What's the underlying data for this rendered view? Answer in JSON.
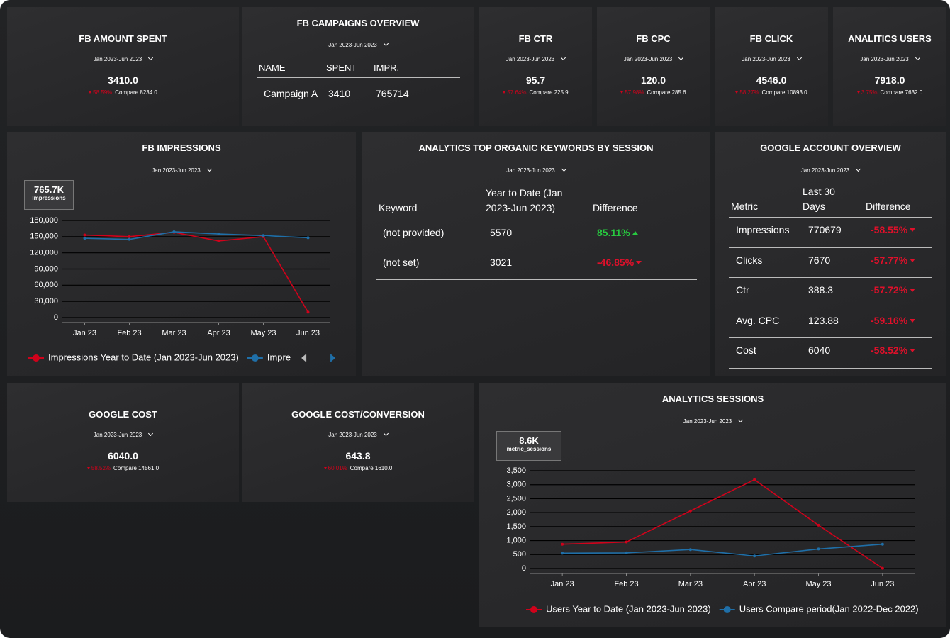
{
  "kpis": [
    {
      "title": "FB AMOUNT SPENT",
      "date_range": "Jan 2023-Jun 2023",
      "value": "3410.0",
      "change": "58.59%",
      "compare": "Compare 8234.0"
    },
    {
      "title": "FB CTR",
      "date_range": "Jan 2023-Jun 2023",
      "value": "95.7",
      "change": "57.64%",
      "compare": "Compare 225.9"
    },
    {
      "title": "FB CPC",
      "date_range": "Jan 2023-Jun 2023",
      "value": "120.0",
      "change": "57.98%",
      "compare": "Compare 285.6"
    },
    {
      "title": "FB CLICK",
      "date_range": "Jan 2023-Jun 2023",
      "value": "4546.0",
      "change": "58.27%",
      "compare": "Compare 10893.0"
    },
    {
      "title": "ANALITICS USERS",
      "date_range": "Jan 2023-Jun 2023",
      "value": "7918.0",
      "change": "3.75%",
      "compare": "Compare 7632.0"
    },
    {
      "title": "GOOGLE COST",
      "date_range": "Jan 2023-Jun 2023",
      "value": "6040.0",
      "change": "58.52%",
      "compare": "Compare 14561.0"
    },
    {
      "title": "GOOGLE COST/CONVERSION",
      "date_range": "Jan 2023-Jun 2023",
      "value": "643.8",
      "change": "60.01%",
      "compare": "Compare 1610.0"
    }
  ],
  "campaigns": {
    "title": "FB CAMPAIGNS OVERVIEW",
    "date_range": "Jan 2023-Jun 2023",
    "headers": [
      "NAME",
      "SPENT",
      "IMPR."
    ],
    "rows": [
      [
        "Campaign A",
        "3410",
        "765714"
      ]
    ]
  },
  "keywords": {
    "title": "ANALYTICS TOP ORGANIC KEYWORDS BY SESSION",
    "date_range": "Jan 2023-Jun 2023",
    "headers": [
      "Keyword",
      "Year to Date (Jan 2023-Jun 2023)",
      "Difference"
    ],
    "rows": [
      [
        "(not provided)",
        "5570",
        "85.11%"
      ],
      [
        "(not set)",
        "3021",
        "-46.85%"
      ]
    ]
  },
  "google_overview": {
    "title": "GOOGLE ACCOUNT OVERVIEW",
    "date_range": "Jan 2023-Jun 2023",
    "headers": [
      "Metric",
      "Last 30 Days",
      "Difference"
    ],
    "rows": [
      [
        "Impressions",
        "770679",
        "-58.55%"
      ],
      [
        "Clicks",
        "7670",
        "-57.77%"
      ],
      [
        "Ctr",
        "388.3",
        "-57.72%"
      ],
      [
        "Avg. CPC",
        "123.88",
        "-59.16%"
      ],
      [
        "Cost",
        "6040",
        "-58.52%"
      ]
    ]
  },
  "chart_data": [
    {
      "type": "line",
      "title": "FB IMPRESSIONS",
      "date_range": "Jan 2023-Jun 2023",
      "scorecard": {
        "value": "765.7K",
        "label": "Impressions"
      },
      "categories": [
        "Jan 23",
        "Feb 23",
        "Mar 23",
        "Apr 23",
        "May 23",
        "Jun 23"
      ],
      "ylim": [
        0,
        180000
      ],
      "yticks": [
        0,
        {
          "value": 30000,
          "label": "30,000"
        },
        {
          "value": 60000,
          "label": "60,000"
        },
        {
          "value": 90000,
          "label": "90,000"
        },
        {
          "value": 120000,
          "label": "120,000"
        },
        {
          "value": 150000,
          "label": "150,000"
        },
        {
          "value": 180000,
          "label": "180,000"
        }
      ],
      "grid": true,
      "series": [
        {
          "name": "Impressions Year to Date (Jan 2023-Jun 2023)",
          "color": "#d0021b",
          "values": [
            153000,
            150000,
            158000,
            142000,
            150000,
            10000
          ]
        },
        {
          "name": "Impre",
          "color": "#1f6fa8",
          "values": [
            147000,
            145000,
            159000,
            155000,
            152000,
            148000
          ]
        }
      ]
    },
    {
      "type": "line",
      "title": "ANALYTICS SESSIONS",
      "date_range": "Jan 2023-Jun 2023",
      "scorecard": {
        "value": "8.6K",
        "label": "metric_sessions"
      },
      "categories": [
        "Jan 23",
        "Feb 23",
        "Mar 23",
        "Apr 23",
        "May 23",
        "Jun 23"
      ],
      "ylim": [
        0,
        3500
      ],
      "yticks": [
        0,
        500,
        {
          "value": 1000,
          "label": "1,000"
        },
        {
          "value": 1500,
          "label": "1,500"
        },
        {
          "value": 2000,
          "label": "2,000"
        },
        {
          "value": 2500,
          "label": "2,500"
        },
        {
          "value": 3000,
          "label": "3,000"
        },
        {
          "value": 3500,
          "label": "3,500"
        }
      ],
      "grid": true,
      "series": [
        {
          "name": "Users Year to Date (Jan 2023-Jun 2023)",
          "color": "#d0021b",
          "values": [
            870,
            950,
            2060,
            3180,
            1550,
            10
          ]
        },
        {
          "name": "Users Compare period(Jan 2022-Dec 2022)",
          "color": "#1f6fa8",
          "values": [
            550,
            560,
            680,
            450,
            700,
            870
          ]
        }
      ]
    }
  ]
}
